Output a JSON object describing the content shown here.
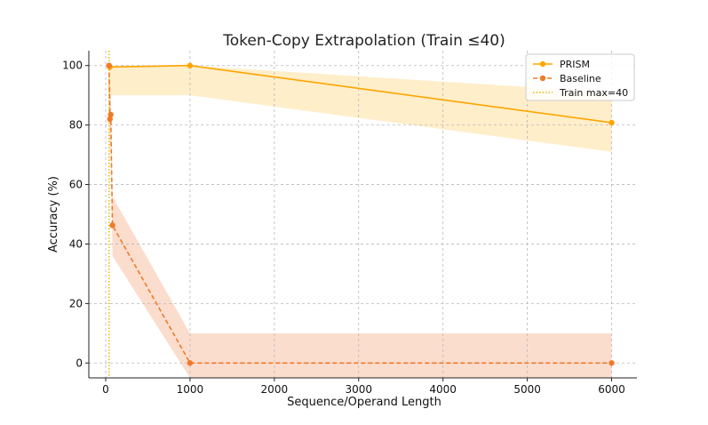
{
  "chart_data": {
    "type": "line",
    "title": "Token-Copy Extrapolation (Train ≤40)",
    "xlabel": "Sequence/Operand Length",
    "ylabel": "Accuracy (%)",
    "xlim": [
      -200,
      6300
    ],
    "ylim": [
      -5,
      105
    ],
    "xticks": [
      0,
      1000,
      2000,
      3000,
      4000,
      5000,
      6000
    ],
    "yticks": [
      0,
      20,
      40,
      60,
      80,
      100
    ],
    "grid": true,
    "legend_position": "top-right",
    "series": [
      {
        "name": "PRISM",
        "color": "#FFA500",
        "linestyle": "solid",
        "x": [
          40,
          50,
          1000,
          6000
        ],
        "y": [
          100,
          99.5,
          100,
          80.8
        ],
        "band_lower": [
          90,
          90,
          90,
          71
        ],
        "band_upper": [
          100,
          100,
          100,
          91
        ]
      },
      {
        "name": "Baseline",
        "color": "#F07A28",
        "linestyle": "dashed",
        "x": [
          40,
          50,
          60,
          80,
          1000,
          6000
        ],
        "y": [
          100,
          82,
          83.5,
          46.3,
          0,
          0
        ],
        "band_lower": [
          90,
          72,
          73,
          36,
          -5,
          -5
        ],
        "band_upper": [
          100,
          92,
          93,
          56,
          10,
          10
        ]
      }
    ],
    "reference_line": {
      "name": "Train max=40",
      "x": 40,
      "color": "#E6B800",
      "linestyle": "dotted"
    }
  }
}
